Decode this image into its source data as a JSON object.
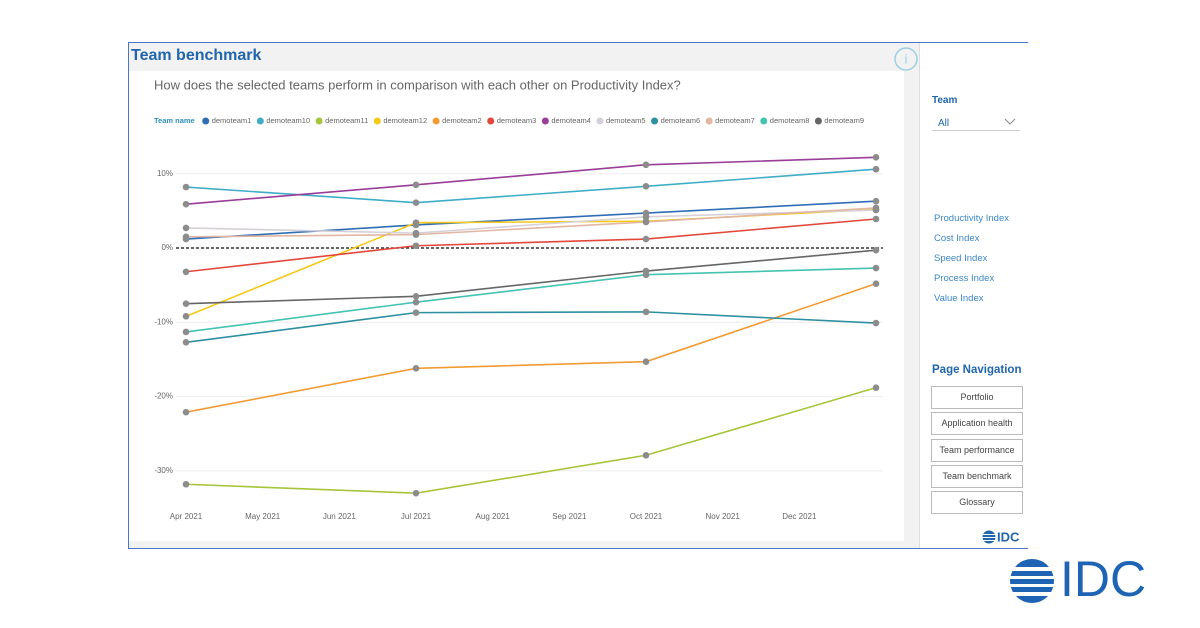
{
  "header": {
    "title": "Team benchmark"
  },
  "filter": {
    "label": "Team",
    "value": "All"
  },
  "index_links": [
    "Productivity Index",
    "Cost Index",
    "Speed Index",
    "Process Index",
    "Value Index"
  ],
  "navigation": {
    "title": "Page Navigation",
    "buttons": [
      "Portfolio",
      "Application health",
      "Team performance",
      "Team benchmark",
      "Glossary"
    ]
  },
  "logo": "IDC",
  "chart_data": {
    "type": "line",
    "subtitle": "How does the selected teams perform in comparison with each other on Productivity Index?",
    "legend_title": "Team name",
    "x": [
      0,
      3,
      6,
      9
    ],
    "xlim": [
      0,
      9
    ],
    "xticks": [
      {
        "value": 0,
        "label": "Apr 2021"
      },
      {
        "value": 1,
        "label": "May 2021"
      },
      {
        "value": 2,
        "label": "Jun 2021"
      },
      {
        "value": 3,
        "label": "Jul 2021"
      },
      {
        "value": 4,
        "label": "Aug 2021"
      },
      {
        "value": 5,
        "label": "Sep 2021"
      },
      {
        "value": 6,
        "label": "Oct 2021"
      },
      {
        "value": 7,
        "label": "Nov 2021"
      },
      {
        "value": 8,
        "label": "Dec 2021"
      }
    ],
    "ylim": [
      -34,
      13
    ],
    "yticks": [
      {
        "value": -30,
        "label": "-30%"
      },
      {
        "value": -20,
        "label": "-20%"
      },
      {
        "value": -10,
        "label": "-10%"
      },
      {
        "value": 0,
        "label": "0%"
      },
      {
        "value": 10,
        "label": "10%"
      }
    ],
    "grid": true,
    "reference_line": 0,
    "marker_color": "#8c8c8c",
    "series": [
      {
        "name": "demoteam1",
        "color": "#2f6db5",
        "values": [
          1.2,
          3.1,
          4.7,
          6.3
        ]
      },
      {
        "name": "demoteam10",
        "color": "#3fadc6",
        "values": [
          8.2,
          6.1,
          8.3,
          10.6
        ]
      },
      {
        "name": "demoteam11",
        "color": "#a5c63b",
        "values": [
          -31.8,
          -33.0,
          -27.9,
          -18.8
        ]
      },
      {
        "name": "demoteam12",
        "color": "#f5c918",
        "values": [
          -9.2,
          3.4,
          3.6,
          5.2
        ]
      },
      {
        "name": "demoteam2",
        "color": "#f39b33",
        "values": [
          -22.1,
          -16.2,
          -15.3,
          -4.8
        ]
      },
      {
        "name": "demoteam3",
        "color": "#e2473a",
        "values": [
          -3.2,
          0.3,
          1.2,
          3.9
        ]
      },
      {
        "name": "demoteam4",
        "color": "#993d98",
        "values": [
          5.9,
          8.5,
          11.2,
          12.2
        ]
      },
      {
        "name": "demoteam5",
        "color": "#d6d0d8",
        "values": [
          2.7,
          2.0,
          4.2,
          5.1
        ]
      },
      {
        "name": "demoteam6",
        "color": "#2d8fa0",
        "values": [
          -12.7,
          -8.7,
          -8.6,
          -10.1
        ]
      },
      {
        "name": "demoteam7",
        "color": "#e2b6a3",
        "values": [
          1.5,
          1.8,
          3.5,
          5.4
        ]
      },
      {
        "name": "demoteam8",
        "color": "#45c3b2",
        "values": [
          -11.3,
          -7.3,
          -3.6,
          -2.7
        ]
      },
      {
        "name": "demoteam9",
        "color": "#666666",
        "values": [
          -7.5,
          -6.5,
          -3.1,
          -0.3
        ]
      }
    ]
  }
}
